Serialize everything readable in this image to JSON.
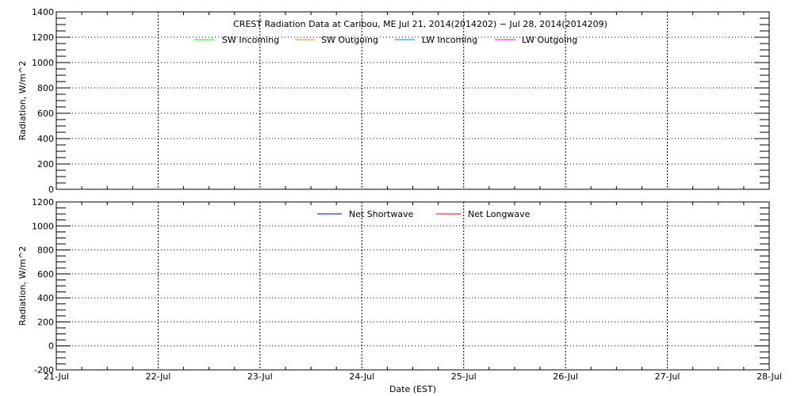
{
  "chart_data": [
    {
      "type": "line",
      "title": "CREST Radiation Data at Caribou, ME   Jul 21, 2014(2014202) − Jul 28, 2014(2014209)",
      "xlabel": "",
      "ylabel": "Radiation, W/m^2",
      "ylim": [
        0,
        1400
      ],
      "yticks": [
        0,
        200,
        400,
        600,
        800,
        1000,
        1200,
        1400
      ],
      "xlim": [
        "2014-07-21",
        "2014-07-28"
      ],
      "grid": true,
      "legend_placement": "top",
      "series": [
        {
          "name": "SW Incoming",
          "color": "#00ff00",
          "values": []
        },
        {
          "name": "SW Outgoing",
          "color": "#ff8000",
          "values": []
        },
        {
          "name": "LW Incoming",
          "color": "#0080ff",
          "values": []
        },
        {
          "name": "LW Outgoing",
          "color": "#ff00ff",
          "values": []
        }
      ]
    },
    {
      "type": "line",
      "xlabel": "Date (EST)",
      "ylabel": "Radiation, W/m^2",
      "ylim": [
        -200,
        1200
      ],
      "yticks": [
        -200,
        0,
        200,
        400,
        600,
        800,
        1000,
        1200
      ],
      "xlim": [
        "2014-07-21",
        "2014-07-28"
      ],
      "xticks": [
        "21-Jul",
        "22-Jul",
        "23-Jul",
        "24-Jul",
        "25-Jul",
        "26-Jul",
        "27-Jul",
        "28-Jul"
      ],
      "grid": true,
      "legend_placement": "top",
      "series": [
        {
          "name": "Net Shortwave",
          "color": "#0000ff",
          "values": []
        },
        {
          "name": "Net Longwave",
          "color": "#ff0000",
          "values": []
        }
      ]
    }
  ]
}
